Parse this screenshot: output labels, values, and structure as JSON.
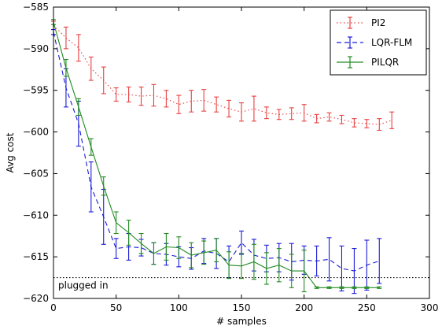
{
  "chart_data": {
    "type": "line",
    "title": "",
    "xlabel": "# samples",
    "ylabel": "Avg cost",
    "xlim": [
      0,
      300
    ],
    "ylim": [
      -620,
      -585
    ],
    "xticks": [
      0,
      50,
      100,
      150,
      200,
      250,
      300
    ],
    "yticks": [
      -585,
      -590,
      -595,
      -600,
      -605,
      -610,
      -615,
      -620
    ],
    "grid": false,
    "legend_position": "top-right",
    "series": [
      {
        "name": "PI2",
        "color": "#e84040",
        "line_style": "dotted",
        "x": [
          0,
          10,
          20,
          30,
          40,
          50,
          60,
          70,
          80,
          90,
          100,
          110,
          120,
          130,
          140,
          150,
          160,
          170,
          180,
          190,
          200,
          210,
          220,
          230,
          240,
          250,
          260,
          270
        ],
        "y": [
          -587.2,
          -588.7,
          -589.9,
          -592.4,
          -593.8,
          -595.5,
          -595.5,
          -595.7,
          -595.6,
          -596.0,
          -596.7,
          -596.3,
          -596.2,
          -596.7,
          -597.2,
          -597.6,
          -597.2,
          -597.7,
          -597.9,
          -597.8,
          -597.7,
          -598.4,
          -598.2,
          -598.5,
          -598.9,
          -599.0,
          -599.1,
          -598.6
        ],
        "err": [
          0.5,
          1.3,
          1.6,
          1.4,
          1.6,
          0.8,
          0.9,
          1.1,
          1.3,
          1.0,
          1.1,
          1.3,
          1.3,
          0.9,
          1.0,
          1.1,
          1.5,
          0.7,
          0.6,
          0.7,
          1.0,
          0.5,
          0.5,
          0.5,
          0.5,
          0.5,
          0.7,
          1.0
        ]
      },
      {
        "name": "LQR-FLM",
        "color": "#1a1ad8",
        "line_style": "dashed",
        "x": [
          0,
          10,
          20,
          30,
          40,
          50,
          60,
          70,
          80,
          90,
          100,
          110,
          120,
          130,
          140,
          150,
          160,
          170,
          180,
          190,
          200,
          210,
          220,
          230,
          240,
          250,
          260
        ],
        "y": [
          -588.0,
          -594.7,
          -599.0,
          -606.6,
          -610.2,
          -614.0,
          -613.8,
          -613.9,
          -614.6,
          -614.7,
          -615.0,
          -615.2,
          -614.3,
          -614.6,
          -615.6,
          -613.3,
          -614.8,
          -615.2,
          -615.1,
          -615.6,
          -615.4,
          -615.5,
          -615.3,
          -616.4,
          -616.7,
          -616.0,
          -615.5
        ],
        "err": [
          0.3,
          2.3,
          2.7,
          3.0,
          3.3,
          1.2,
          1.6,
          1.0,
          1.3,
          1.3,
          1.2,
          1.3,
          1.5,
          1.8,
          1.9,
          1.4,
          1.9,
          1.6,
          1.7,
          2.2,
          1.7,
          1.8,
          2.6,
          2.7,
          2.7,
          3.0,
          2.7
        ]
      },
      {
        "name": "PILQR",
        "color": "#228b22",
        "line_style": "solid",
        "x": [
          0,
          10,
          20,
          30,
          40,
          50,
          60,
          70,
          80,
          90,
          100,
          110,
          120,
          130,
          140,
          150,
          160,
          170,
          180,
          190,
          200,
          210,
          220,
          230,
          240,
          250,
          260
        ],
        "y": [
          -586.8,
          -592.3,
          -597.0,
          -601.8,
          -606.5,
          -610.9,
          -612.1,
          -613.4,
          -614.6,
          -613.8,
          -613.9,
          -614.8,
          -614.5,
          -614.2,
          -616.0,
          -616.1,
          -615.6,
          -616.4,
          -616.0,
          -616.7,
          -616.7,
          -618.7,
          -618.7,
          -618.7,
          -618.7,
          -618.7,
          -618.7
        ],
        "err": [
          0.3,
          1.0,
          1.0,
          1.0,
          1.1,
          1.3,
          1.5,
          1.2,
          1.3,
          1.6,
          1.3,
          1.5,
          1.4,
          1.4,
          1.6,
          1.5,
          2.1,
          1.9,
          2.0,
          2.0,
          2.5,
          0.1,
          0.1,
          0.1,
          0.1,
          0.1,
          0.1
        ]
      }
    ],
    "annotations": [
      {
        "text": "plugged in",
        "y": -617.5,
        "line_style": "dotted",
        "color": "#000000"
      }
    ]
  }
}
